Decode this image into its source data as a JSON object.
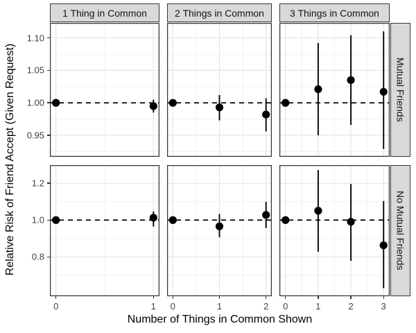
{
  "chart_data": {
    "type": "scatter",
    "subtype": "pointrange-facet-grid",
    "title": "",
    "xlabel": "Number of Things in Common Shown",
    "ylabel": "Relative Risk of Friend Accept (Given Request)",
    "reference_line_y": 1.0,
    "reference_line_style": "dashed",
    "grid": "on",
    "legend": "none",
    "col_facets": [
      "1 Thing in Common",
      "2 Things in Common",
      "3 Things in Common"
    ],
    "row_facets": [
      {
        "label": "Mutual Friends",
        "ylim": [
          0.917,
          1.123
        ],
        "yticks": [
          0.95,
          1.0,
          1.05,
          1.1
        ],
        "ytick_labels": [
          "0.95",
          "1.00",
          "1.05",
          "1.10"
        ]
      },
      {
        "label": "No Mutual Friends",
        "ylim": [
          0.586,
          1.299
        ],
        "yticks": [
          0.8,
          1.0,
          1.2
        ],
        "ytick_labels": [
          "0.8",
          "1.0",
          "1.2"
        ]
      }
    ],
    "panels": [
      {
        "row": "Mutual Friends",
        "col": "1 Thing in Common",
        "xticks": [
          0,
          1
        ],
        "points": [
          {
            "x": 0,
            "y": 1.0
          },
          {
            "x": 1,
            "y": 0.995,
            "lo": 0.985,
            "hi": 1.005
          }
        ]
      },
      {
        "row": "Mutual Friends",
        "col": "2 Things in Common",
        "xticks": [
          0,
          1,
          2
        ],
        "points": [
          {
            "x": 0,
            "y": 1.0
          },
          {
            "x": 1,
            "y": 0.993,
            "lo": 0.973,
            "hi": 1.012
          },
          {
            "x": 2,
            "y": 0.982,
            "lo": 0.956,
            "hi": 1.007
          }
        ]
      },
      {
        "row": "Mutual Friends",
        "col": "3 Things in Common",
        "xticks": [
          0,
          1,
          2,
          3
        ],
        "points": [
          {
            "x": 0,
            "y": 1.0
          },
          {
            "x": 1,
            "y": 1.021,
            "lo": 0.95,
            "hi": 1.092
          },
          {
            "x": 2,
            "y": 1.035,
            "lo": 0.966,
            "hi": 1.104
          },
          {
            "x": 3,
            "y": 1.017,
            "lo": 0.929,
            "hi": 1.11
          }
        ]
      },
      {
        "row": "No Mutual Friends",
        "col": "1 Thing in Common",
        "xticks": [
          0,
          1
        ],
        "points": [
          {
            "x": 0,
            "y": 1.0
          },
          {
            "x": 1,
            "y": 1.013,
            "lo": 0.965,
            "hi": 1.047
          }
        ]
      },
      {
        "row": "No Mutual Friends",
        "col": "2 Things in Common",
        "xticks": [
          0,
          1,
          2
        ],
        "points": [
          {
            "x": 0,
            "y": 1.0
          },
          {
            "x": 1,
            "y": 0.966,
            "lo": 0.907,
            "hi": 1.033
          },
          {
            "x": 2,
            "y": 1.028,
            "lo": 0.957,
            "hi": 1.099
          }
        ]
      },
      {
        "row": "No Mutual Friends",
        "col": "3 Things in Common",
        "xticks": [
          0,
          1,
          2,
          3
        ],
        "points": [
          {
            "x": 0,
            "y": 1.0
          },
          {
            "x": 1,
            "y": 1.051,
            "lo": 0.828,
            "hi": 1.272
          },
          {
            "x": 2,
            "y": 0.991,
            "lo": 0.778,
            "hi": 1.196
          },
          {
            "x": 3,
            "y": 0.863,
            "lo": 0.63,
            "hi": 1.104
          }
        ]
      }
    ],
    "colors": {
      "point": "#000000",
      "error_bar": "#000000",
      "reference_line": "#000000",
      "strip_bg": "#D9D9D9",
      "strip_border": "#333333",
      "panel_border": "#333333",
      "grid_major": "#E3E3E3",
      "grid_minor": "#F0F0F0",
      "tick_label": "#404040",
      "background": "#FFFFFF"
    }
  }
}
